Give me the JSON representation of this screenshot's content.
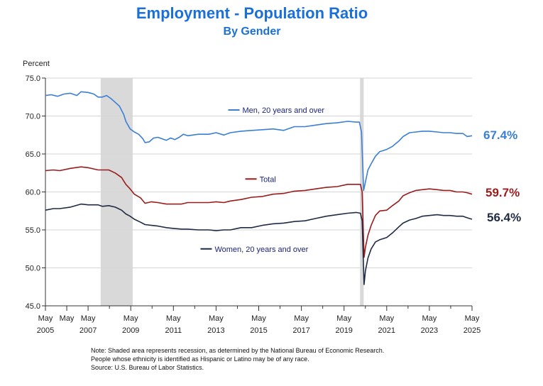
{
  "header": {
    "title": "Employment - Population Ratio",
    "subtitle": "By Gender"
  },
  "colors": {
    "title": "#1a6fd9",
    "men": "#3b7fd4",
    "total": "#9b1b1b",
    "women": "#1f2a44",
    "recession": "#d9d9d9"
  },
  "end_values": {
    "men": "67.4%",
    "total": "59.7%",
    "women": "56.4%"
  },
  "notes": [
    "Note: Shaded area represents recession, as determined by the National Bureau of Economic Research.",
    "People whose ethnicity is identified as Hispanic or Latino may be of any race.",
    "Source: U.S. Bureau of Labor Statistics."
  ],
  "chart_data": {
    "type": "line",
    "title": "Employment - Population Ratio",
    "subtitle": "By Gender",
    "ylabel": "Percent",
    "xlim": [
      2005.33,
      2025.33
    ],
    "ylim": [
      45,
      75
    ],
    "yticks": [
      45,
      50,
      55,
      60,
      65,
      70,
      75
    ],
    "ytick_labels": [
      "45.0",
      "50.0",
      "55.0",
      "60.0",
      "65.0",
      "70.0",
      "75.0"
    ],
    "xticks": [
      {
        "x": 2005.33,
        "month": "May",
        "year": "2005"
      },
      {
        "x": 2006.33,
        "month": "May",
        "year": ""
      },
      {
        "x": 2007.33,
        "month": "May",
        "year": "2007"
      },
      {
        "x": 2008.33,
        "month": "",
        "year": ""
      },
      {
        "x": 2009.33,
        "month": "May",
        "year": "2009"
      },
      {
        "x": 2010.33,
        "month": "",
        "year": ""
      },
      {
        "x": 2011.33,
        "month": "May",
        "year": "2011"
      },
      {
        "x": 2012.33,
        "month": "",
        "year": ""
      },
      {
        "x": 2013.33,
        "month": "May",
        "year": "2013"
      },
      {
        "x": 2014.33,
        "month": "",
        "year": ""
      },
      {
        "x": 2015.33,
        "month": "May",
        "year": "2015"
      },
      {
        "x": 2016.33,
        "month": "",
        "year": ""
      },
      {
        "x": 2017.33,
        "month": "May",
        "year": "2017"
      },
      {
        "x": 2018.33,
        "month": "",
        "year": ""
      },
      {
        "x": 2019.33,
        "month": "May",
        "year": "2019"
      },
      {
        "x": 2020.33,
        "month": "",
        "year": ""
      },
      {
        "x": 2021.33,
        "month": "May",
        "year": "2021"
      },
      {
        "x": 2022.33,
        "month": "",
        "year": ""
      },
      {
        "x": 2023.33,
        "month": "May",
        "year": "2023"
      },
      {
        "x": 2024.33,
        "month": "",
        "year": ""
      },
      {
        "x": 2025.33,
        "month": "May",
        "year": "2025"
      }
    ],
    "recessions": [
      {
        "start": 2007.92,
        "end": 2009.42
      },
      {
        "start": 2020.08,
        "end": 2020.25
      }
    ],
    "grid": true,
    "series": [
      {
        "key": "men",
        "name": "Men, 20 years and over",
        "legend_pos": [
          2013.9,
          70.8
        ],
        "points": [
          [
            2005.33,
            72.7
          ],
          [
            2005.6,
            72.8
          ],
          [
            2005.9,
            72.6
          ],
          [
            2006.2,
            72.9
          ],
          [
            2006.5,
            73.0
          ],
          [
            2006.8,
            72.7
          ],
          [
            2007.0,
            73.2
          ],
          [
            2007.33,
            73.1
          ],
          [
            2007.6,
            72.9
          ],
          [
            2007.8,
            72.5
          ],
          [
            2008.0,
            72.5
          ],
          [
            2008.2,
            72.7
          ],
          [
            2008.4,
            72.3
          ],
          [
            2008.6,
            71.8
          ],
          [
            2008.8,
            71.3
          ],
          [
            2009.0,
            70.2
          ],
          [
            2009.1,
            69.3
          ],
          [
            2009.3,
            68.3
          ],
          [
            2009.5,
            67.9
          ],
          [
            2009.7,
            67.6
          ],
          [
            2009.9,
            67.0
          ],
          [
            2010.0,
            66.5
          ],
          [
            2010.2,
            66.6
          ],
          [
            2010.4,
            67.1
          ],
          [
            2010.6,
            67.2
          ],
          [
            2010.8,
            67.0
          ],
          [
            2011.0,
            66.8
          ],
          [
            2011.2,
            67.1
          ],
          [
            2011.4,
            66.9
          ],
          [
            2011.6,
            67.2
          ],
          [
            2011.8,
            67.6
          ],
          [
            2012.0,
            67.4
          ],
          [
            2012.5,
            67.6
          ],
          [
            2013.0,
            67.6
          ],
          [
            2013.33,
            67.8
          ],
          [
            2013.7,
            67.5
          ],
          [
            2014.0,
            67.8
          ],
          [
            2014.5,
            68.0
          ],
          [
            2015.0,
            68.1
          ],
          [
            2015.5,
            68.2
          ],
          [
            2016.0,
            68.3
          ],
          [
            2016.5,
            68.1
          ],
          [
            2017.0,
            68.6
          ],
          [
            2017.5,
            68.6
          ],
          [
            2018.0,
            68.8
          ],
          [
            2018.5,
            69.0
          ],
          [
            2019.0,
            69.1
          ],
          [
            2019.5,
            69.3
          ],
          [
            2019.9,
            69.2
          ],
          [
            2020.05,
            69.2
          ],
          [
            2020.15,
            67.9
          ],
          [
            2020.25,
            60.2
          ],
          [
            2020.33,
            61.3
          ],
          [
            2020.45,
            62.9
          ],
          [
            2020.6,
            63.7
          ],
          [
            2020.8,
            64.7
          ],
          [
            2021.0,
            65.3
          ],
          [
            2021.33,
            65.6
          ],
          [
            2021.6,
            66.0
          ],
          [
            2021.9,
            66.7
          ],
          [
            2022.1,
            67.3
          ],
          [
            2022.4,
            67.8
          ],
          [
            2022.7,
            67.9
          ],
          [
            2023.0,
            68.0
          ],
          [
            2023.33,
            68.0
          ],
          [
            2023.7,
            67.9
          ],
          [
            2024.0,
            67.8
          ],
          [
            2024.3,
            67.8
          ],
          [
            2024.6,
            67.7
          ],
          [
            2024.9,
            67.7
          ],
          [
            2025.1,
            67.3
          ],
          [
            2025.33,
            67.4
          ]
        ]
      },
      {
        "key": "total",
        "name": "Total",
        "legend_pos": [
          2014.7,
          61.7
        ],
        "points": [
          [
            2005.33,
            62.8
          ],
          [
            2005.7,
            62.9
          ],
          [
            2006.0,
            62.8
          ],
          [
            2006.5,
            63.1
          ],
          [
            2007.0,
            63.3
          ],
          [
            2007.33,
            63.2
          ],
          [
            2007.8,
            62.9
          ],
          [
            2008.0,
            62.9
          ],
          [
            2008.3,
            62.9
          ],
          [
            2008.6,
            62.5
          ],
          [
            2008.9,
            61.9
          ],
          [
            2009.1,
            61.0
          ],
          [
            2009.3,
            60.4
          ],
          [
            2009.5,
            59.7
          ],
          [
            2009.8,
            59.2
          ],
          [
            2010.0,
            58.5
          ],
          [
            2010.3,
            58.7
          ],
          [
            2010.6,
            58.6
          ],
          [
            2011.0,
            58.4
          ],
          [
            2011.33,
            58.4
          ],
          [
            2011.7,
            58.4
          ],
          [
            2012.0,
            58.6
          ],
          [
            2012.5,
            58.6
          ],
          [
            2013.0,
            58.6
          ],
          [
            2013.33,
            58.7
          ],
          [
            2013.7,
            58.6
          ],
          [
            2014.0,
            58.8
          ],
          [
            2014.5,
            59.0
          ],
          [
            2015.0,
            59.3
          ],
          [
            2015.5,
            59.4
          ],
          [
            2016.0,
            59.7
          ],
          [
            2016.5,
            59.8
          ],
          [
            2017.0,
            60.1
          ],
          [
            2017.5,
            60.2
          ],
          [
            2018.0,
            60.4
          ],
          [
            2018.5,
            60.6
          ],
          [
            2019.0,
            60.7
          ],
          [
            2019.5,
            61.0
          ],
          [
            2019.9,
            61.0
          ],
          [
            2020.1,
            61.0
          ],
          [
            2020.18,
            60.0
          ],
          [
            2020.27,
            51.4
          ],
          [
            2020.33,
            52.7
          ],
          [
            2020.45,
            54.3
          ],
          [
            2020.6,
            55.6
          ],
          [
            2020.8,
            56.9
          ],
          [
            2021.0,
            57.5
          ],
          [
            2021.33,
            57.6
          ],
          [
            2021.6,
            58.2
          ],
          [
            2021.9,
            58.8
          ],
          [
            2022.1,
            59.5
          ],
          [
            2022.4,
            59.9
          ],
          [
            2022.7,
            60.2
          ],
          [
            2023.0,
            60.3
          ],
          [
            2023.33,
            60.4
          ],
          [
            2023.7,
            60.3
          ],
          [
            2024.0,
            60.2
          ],
          [
            2024.3,
            60.2
          ],
          [
            2024.6,
            60.0
          ],
          [
            2024.9,
            60.0
          ],
          [
            2025.1,
            59.9
          ],
          [
            2025.33,
            59.7
          ]
        ]
      },
      {
        "key": "women",
        "name": "Women, 20 years and over",
        "legend_pos": [
          2012.6,
          52.5
        ],
        "points": [
          [
            2005.33,
            57.6
          ],
          [
            2005.7,
            57.8
          ],
          [
            2006.0,
            57.8
          ],
          [
            2006.5,
            58.0
          ],
          [
            2007.0,
            58.4
          ],
          [
            2007.33,
            58.3
          ],
          [
            2007.8,
            58.3
          ],
          [
            2008.0,
            58.1
          ],
          [
            2008.3,
            58.2
          ],
          [
            2008.6,
            58.0
          ],
          [
            2008.9,
            57.6
          ],
          [
            2009.1,
            57.1
          ],
          [
            2009.3,
            56.8
          ],
          [
            2009.5,
            56.4
          ],
          [
            2009.8,
            56.0
          ],
          [
            2010.0,
            55.7
          ],
          [
            2010.3,
            55.6
          ],
          [
            2010.6,
            55.5
          ],
          [
            2011.0,
            55.3
          ],
          [
            2011.33,
            55.2
          ],
          [
            2011.7,
            55.1
          ],
          [
            2012.0,
            55.1
          ],
          [
            2012.5,
            55.0
          ],
          [
            2013.0,
            55.0
          ],
          [
            2013.33,
            54.9
          ],
          [
            2013.7,
            55.0
          ],
          [
            2014.0,
            55.0
          ],
          [
            2014.5,
            55.3
          ],
          [
            2015.0,
            55.3
          ],
          [
            2015.5,
            55.6
          ],
          [
            2016.0,
            55.8
          ],
          [
            2016.5,
            55.9
          ],
          [
            2017.0,
            56.1
          ],
          [
            2017.5,
            56.2
          ],
          [
            2018.0,
            56.5
          ],
          [
            2018.5,
            56.8
          ],
          [
            2019.0,
            57.0
          ],
          [
            2019.5,
            57.2
          ],
          [
            2019.9,
            57.3
          ],
          [
            2020.1,
            57.2
          ],
          [
            2020.18,
            56.2
          ],
          [
            2020.27,
            47.8
          ],
          [
            2020.33,
            49.6
          ],
          [
            2020.45,
            51.3
          ],
          [
            2020.6,
            52.5
          ],
          [
            2020.8,
            53.4
          ],
          [
            2021.0,
            53.7
          ],
          [
            2021.33,
            54.0
          ],
          [
            2021.6,
            54.6
          ],
          [
            2021.9,
            55.4
          ],
          [
            2022.1,
            55.9
          ],
          [
            2022.4,
            56.3
          ],
          [
            2022.7,
            56.5
          ],
          [
            2023.0,
            56.8
          ],
          [
            2023.33,
            56.9
          ],
          [
            2023.7,
            57.0
          ],
          [
            2024.0,
            56.9
          ],
          [
            2024.3,
            56.9
          ],
          [
            2024.6,
            56.8
          ],
          [
            2024.9,
            56.8
          ],
          [
            2025.1,
            56.6
          ],
          [
            2025.33,
            56.4
          ]
        ]
      }
    ]
  }
}
